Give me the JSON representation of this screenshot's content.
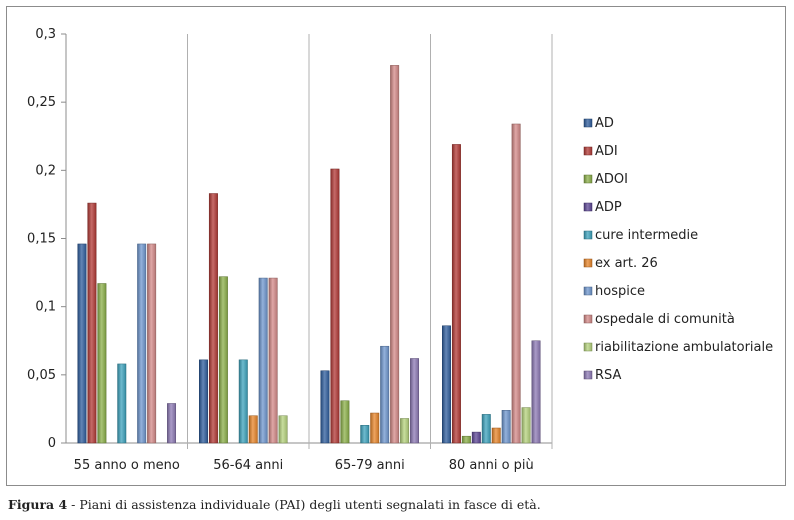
{
  "caption": {
    "figure_label": "Figura 4",
    "text": " - Piani di assistenza individuale (PAI) degli utenti segnalati in fasce di età."
  },
  "chart_data": {
    "type": "bar",
    "title": "",
    "xlabel": "",
    "ylabel": "",
    "ylim": [
      0,
      0.3
    ],
    "yticks": [
      0,
      0.05,
      0.1,
      0.15,
      0.2,
      0.25,
      0.3
    ],
    "ytick_labels": [
      "0",
      "0,05",
      "0,1",
      "0,15",
      "0,2",
      "0,25",
      "0,3"
    ],
    "grid": false,
    "legend_position": "right",
    "categories": [
      "55 anno o meno",
      "56-64 anni",
      "65-79 anni",
      "80 anni o più"
    ],
    "series": [
      {
        "name": "AD",
        "color": "#2f5e9e",
        "values": [
          0.146,
          0.061,
          0.053,
          0.086
        ]
      },
      {
        "name": "ADI",
        "color": "#b33a36",
        "values": [
          0.176,
          0.183,
          0.201,
          0.219
        ]
      },
      {
        "name": "ADOI",
        "color": "#8cb04a",
        "values": [
          0.117,
          0.122,
          0.031,
          0.005
        ]
      },
      {
        "name": "ADP",
        "color": "#5d4796",
        "values": [
          0.0,
          0.0,
          0.0,
          0.008
        ]
      },
      {
        "name": "cure intermedie",
        "color": "#3da3bd",
        "values": [
          0.058,
          0.061,
          0.013,
          0.021
        ]
      },
      {
        "name": "ex art. 26",
        "color": "#e8862a",
        "values": [
          0.0,
          0.02,
          0.022,
          0.011
        ]
      },
      {
        "name": "hospice",
        "color": "#6f97cf",
        "values": [
          0.146,
          0.121,
          0.071,
          0.024
        ]
      },
      {
        "name": "ospedale di comunità",
        "color": "#d48a88",
        "values": [
          0.146,
          0.121,
          0.277,
          0.234
        ]
      },
      {
        "name": "riabilitazione ambulatoriale",
        "color": "#b5d37d",
        "values": [
          0.0,
          0.02,
          0.018,
          0.026
        ]
      },
      {
        "name": "RSA",
        "color": "#8d7ab5",
        "values": [
          0.029,
          0.0,
          0.062,
          0.075
        ]
      }
    ]
  }
}
